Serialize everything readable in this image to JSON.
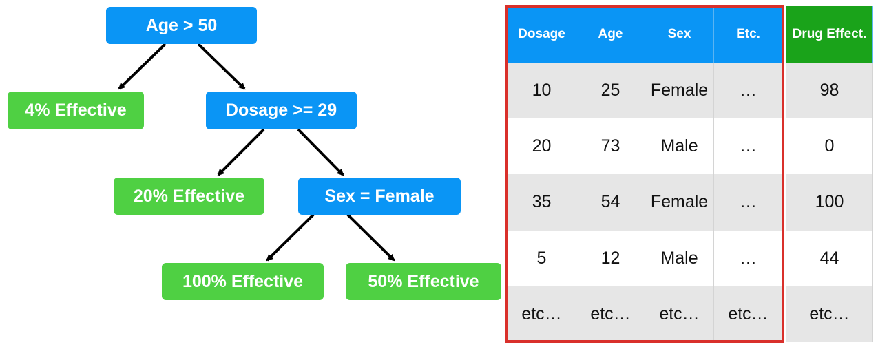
{
  "tree": {
    "nodes": [
      {
        "id": "age",
        "label": "Age > 50",
        "kind": "decision"
      },
      {
        "id": "leaf4",
        "label": "4% Effective",
        "kind": "leaf"
      },
      {
        "id": "dosage",
        "label": "Dosage >= 29",
        "kind": "decision"
      },
      {
        "id": "leaf20",
        "label": "20% Effective",
        "kind": "leaf"
      },
      {
        "id": "sex",
        "label": "Sex = Female",
        "kind": "decision"
      },
      {
        "id": "leaf100",
        "label": "100% Effective",
        "kind": "leaf"
      },
      {
        "id": "leaf50",
        "label": "50% Effective",
        "kind": "leaf"
      }
    ],
    "edges": [
      {
        "from": "age",
        "to": "leaf4"
      },
      {
        "from": "age",
        "to": "dosage"
      },
      {
        "from": "dosage",
        "to": "leaf20"
      },
      {
        "from": "dosage",
        "to": "sex"
      },
      {
        "from": "sex",
        "to": "leaf100"
      },
      {
        "from": "sex",
        "to": "leaf50"
      }
    ]
  },
  "table": {
    "headers": [
      "Dosage",
      "Age",
      "Sex",
      "Etc.",
      "Drug Effect."
    ],
    "rows": [
      [
        "10",
        "25",
        "Female",
        "…",
        "98"
      ],
      [
        "20",
        "73",
        "Male",
        "…",
        "0"
      ],
      [
        "35",
        "54",
        "Female",
        "…",
        "100"
      ],
      [
        "5",
        "12",
        "Male",
        "…",
        "44"
      ],
      [
        "etc…",
        "etc…",
        "etc…",
        "etc…",
        "etc…"
      ]
    ]
  },
  "colors": {
    "decision": "#0a95f5",
    "leaf": "#4fd043",
    "header_target": "#1aa31a",
    "feature_outline": "#d9302b"
  }
}
